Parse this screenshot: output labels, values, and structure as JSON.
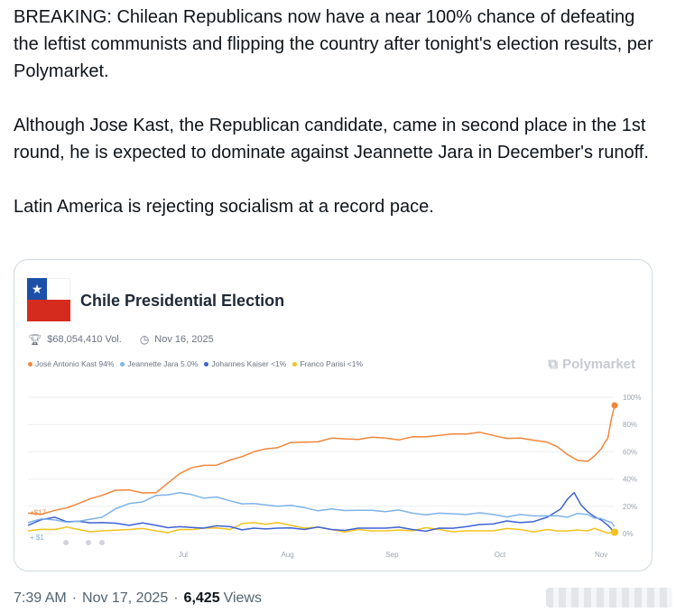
{
  "tweet": {
    "paragraphs": [
      "BREAKING: Chilean Republicans now have a near 100% chance of defeating the leftist communists and flipping the country after tonight's election results, per Polymarket.",
      "Although Jose Kast, the Republican candidate, came in second place in the 1st round, he is expected to dominate against Jeannette Jara in December's runoff.",
      "Latin America is rejecting socialism at a record pace."
    ],
    "time": "7:39 AM",
    "date": "Nov 17, 2025",
    "separator": "·",
    "views_count": "6,425",
    "views_label": "Views"
  },
  "card": {
    "flag_icon": "chile-flag-icon",
    "title": "Chile Presidential Election",
    "volume": "$68,054,410 Vol.",
    "date": "Nov 16, 2025",
    "brand": "Polymarket",
    "colors": {
      "kast": "#f0863b",
      "jara": "#7eb3e8",
      "kaiser": "#3d63d3",
      "parisi": "#f2c21b"
    },
    "legend": [
      {
        "label": "José Antonio Kast 94%",
        "color": "#f0863b"
      },
      {
        "label": "Jeannette Jara 5.0%",
        "color": "#7eb3e8"
      },
      {
        "label": "Johannes Kaiser <1%",
        "color": "#3d63d3"
      },
      {
        "label": "Franco Parisi <1%",
        "color": "#f2c21b"
      }
    ],
    "start_labels": {
      "orange": "$17",
      "blue": "$1"
    }
  },
  "chart_data": {
    "type": "line",
    "x_tick_labels": [
      "Jul",
      "Aug",
      "Sep",
      "Oct",
      "Nov"
    ],
    "y_tick_labels": [
      "100%",
      "80%",
      "60%",
      "40%",
      "20%",
      "0%"
    ],
    "ylim": [
      0,
      100
    ],
    "grid": true,
    "x_note": "month ticks; x values are approximate day offsets from the chart start (late May 2025), chart ends Nov 17",
    "series": [
      {
        "name": "José Antonio Kast",
        "color": "#f0863b",
        "x": [
          0,
          8,
          15,
          22,
          30,
          38,
          45,
          52,
          60,
          67,
          74,
          82,
          90,
          98,
          106,
          114,
          122,
          130,
          138,
          146,
          154,
          160,
          166,
          170,
          172,
          174
        ],
        "y": [
          15,
          17,
          22,
          28,
          32,
          30,
          44,
          50,
          54,
          60,
          63,
          67,
          70,
          69,
          70,
          71,
          72,
          73,
          72,
          70,
          67,
          58,
          53,
          62,
          70,
          94
        ]
      },
      {
        "name": "Jeannette Jara",
        "color": "#7eb3e8",
        "x": [
          0,
          8,
          15,
          22,
          30,
          38,
          45,
          52,
          60,
          67,
          74,
          82,
          90,
          98,
          106,
          114,
          122,
          130,
          138,
          146,
          154,
          160,
          166,
          170,
          172,
          174
        ],
        "y": [
          8,
          10,
          9,
          12,
          22,
          28,
          30,
          26,
          24,
          22,
          20,
          19,
          18,
          17,
          16,
          15,
          15,
          14,
          14,
          14,
          13,
          12,
          14,
          11,
          9,
          5
        ]
      },
      {
        "name": "Johannes Kaiser",
        "color": "#3d63d3",
        "x": [
          0,
          8,
          15,
          22,
          30,
          38,
          45,
          52,
          60,
          67,
          74,
          82,
          90,
          98,
          106,
          114,
          122,
          130,
          138,
          146,
          154,
          158,
          162,
          166,
          170,
          174
        ],
        "y": [
          6,
          12,
          9,
          8,
          6,
          6,
          5,
          4,
          5,
          4,
          4,
          3,
          3,
          4,
          4,
          3,
          4,
          5,
          7,
          8,
          12,
          18,
          30,
          16,
          10,
          1
        ]
      },
      {
        "name": "Franco Parisi",
        "color": "#f2c21b",
        "x": [
          0,
          8,
          15,
          22,
          30,
          38,
          45,
          52,
          60,
          67,
          74,
          82,
          90,
          98,
          106,
          114,
          122,
          130,
          138,
          146,
          154,
          160,
          166,
          170,
          174
        ],
        "y": [
          2,
          3,
          3,
          2,
          3,
          2,
          3,
          4,
          3,
          8,
          8,
          4,
          3,
          3,
          2,
          2,
          3,
          2,
          2,
          3,
          3,
          2,
          2,
          2,
          1
        ]
      }
    ]
  }
}
